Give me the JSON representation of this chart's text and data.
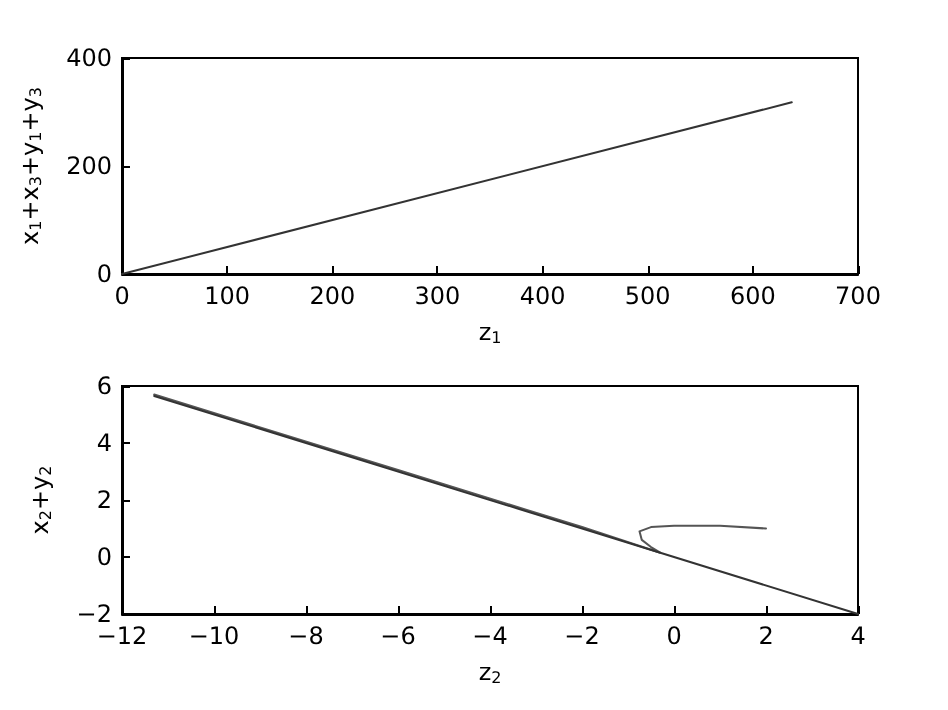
{
  "chart_data": [
    {
      "type": "line",
      "xlabel": "z$_{1}$",
      "ylabel": "x$_{1}$+x$_{3}$+y$_{1}$+y$_{3}$",
      "xlim": [
        0,
        700
      ],
      "xticks": [
        0,
        100,
        200,
        300,
        400,
        500,
        600,
        700
      ],
      "ylim": [
        0,
        400
      ],
      "yticks": [
        0,
        200,
        400
      ],
      "grid": false,
      "marker": "none",
      "line_style": "solid",
      "series": [
        {
          "color": "#333333",
          "x": [
            0,
            637
          ],
          "values": [
            0,
            318
          ]
        }
      ]
    },
    {
      "type": "line",
      "xlabel": "z$_{2}$",
      "ylabel": "x$_{2}$+y$_{2}$",
      "xlim": [
        -12,
        4
      ],
      "xticks": [
        -12,
        -10,
        -8,
        -6,
        -4,
        -2,
        0,
        2,
        4
      ],
      "ylim": [
        -2,
        6
      ],
      "yticks": [
        -2,
        0,
        2,
        4,
        6
      ],
      "grid": false,
      "marker": "none",
      "line_style": "solid",
      "series": [
        {
          "color": "#555555",
          "x": [
            2,
            1,
            0,
            -0.5,
            -0.75,
            -0.7,
            -0.5,
            -0.3,
            -2,
            -6,
            -11.3
          ],
          "values": [
            1,
            1.1,
            1.1,
            1.05,
            0.9,
            0.6,
            0.35,
            0.15,
            1.05,
            3.05,
            5.7
          ]
        },
        {
          "color": "#333333",
          "x": [
            -11.3,
            4
          ],
          "values": [
            5.65,
            -2
          ]
        }
      ]
    }
  ]
}
